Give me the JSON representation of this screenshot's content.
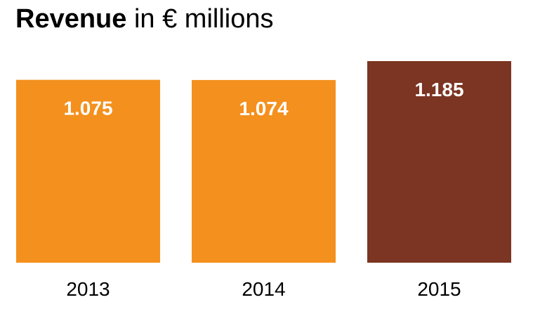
{
  "chart_data": {
    "type": "bar",
    "title_bold": "Revenue",
    "title_rest": " in € millions",
    "categories": [
      "2013",
      "2014",
      "2015"
    ],
    "values": [
      1.075,
      1.074,
      1.185
    ],
    "value_labels": [
      "1.075",
      "1.074",
      "1.185"
    ],
    "colors": [
      "#F4901E",
      "#F4901E",
      "#7B3522"
    ],
    "label_color": "#FFFFFF",
    "axis_label_color": "#000000",
    "grid": false,
    "legend": "none"
  }
}
